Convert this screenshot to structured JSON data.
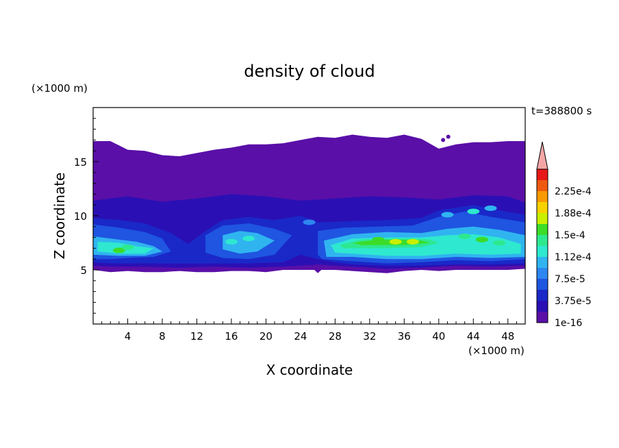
{
  "chart_data": {
    "type": "heatmap",
    "title": "density of cloud",
    "xlabel": "X coordinate",
    "ylabel": "Z coordinate",
    "x_unit": "(×1000 m)",
    "y_unit": "(×1000 m)",
    "time_label": "t=388800 s",
    "xlim": [
      0,
      50
    ],
    "ylim": [
      0,
      20
    ],
    "x_ticks": [
      4,
      8,
      12,
      16,
      20,
      24,
      28,
      32,
      36,
      40,
      44,
      48
    ],
    "x_tick_labels": [
      "4",
      "8",
      "12",
      "16",
      "20",
      "24",
      "28",
      "32",
      "36",
      "40",
      "44",
      "48"
    ],
    "y_ticks": [
      5,
      10,
      15
    ],
    "y_tick_labels": [
      "5",
      "10",
      "15"
    ],
    "colorbar": {
      "levels": [
        1e-16,
        1.875e-05,
        3.75e-05,
        5.625e-05,
        7.5e-05,
        9.375e-05,
        0.0001125,
        0.00013125,
        0.00015,
        0.00016875,
        0.0001875,
        0.00020625,
        0.000225,
        0.00024375
      ],
      "labels": [
        "1e-16",
        "3.75e-5",
        "7.5e-5",
        "1.12e-4",
        "1.5e-4",
        "1.88e-4",
        "2.25e-4"
      ],
      "label_levels": [
        0,
        2,
        4,
        6,
        8,
        10,
        12
      ],
      "colors": [
        "#5a0fa8",
        "#2a10b4",
        "#1a28c8",
        "#1f55e0",
        "#2e86f0",
        "#30b4f0",
        "#2ee8d0",
        "#2ee890",
        "#3cdc28",
        "#c8f000",
        "#f8d200",
        "#f89a00",
        "#f05a10",
        "#e81818"
      ],
      "extend_color": "#f4a6a6"
    },
    "top_boundary": [
      [
        0,
        16.9
      ],
      [
        2,
        16.9
      ],
      [
        3,
        16.5
      ],
      [
        4,
        16.1
      ],
      [
        6,
        16.0
      ],
      [
        8,
        15.6
      ],
      [
        10,
        15.5
      ],
      [
        12,
        15.8
      ],
      [
        14,
        16.1
      ],
      [
        16,
        16.3
      ],
      [
        18,
        16.6
      ],
      [
        20,
        16.6
      ],
      [
        22,
        16.7
      ],
      [
        24,
        17.0
      ],
      [
        26,
        17.3
      ],
      [
        28,
        17.2
      ],
      [
        30,
        17.5
      ],
      [
        32,
        17.3
      ],
      [
        34,
        17.2
      ],
      [
        36,
        17.5
      ],
      [
        38,
        17.1
      ],
      [
        40,
        16.2
      ],
      [
        42,
        16.6
      ],
      [
        44,
        16.8
      ],
      [
        46,
        16.8
      ],
      [
        48,
        16.9
      ],
      [
        50,
        16.9
      ]
    ],
    "bottom_boundary": [
      [
        0,
        5.0
      ],
      [
        2,
        4.8
      ],
      [
        4,
        4.9
      ],
      [
        6,
        4.8
      ],
      [
        8,
        4.8
      ],
      [
        10,
        4.9
      ],
      [
        12,
        4.8
      ],
      [
        14,
        4.8
      ],
      [
        16,
        4.9
      ],
      [
        18,
        4.9
      ],
      [
        20,
        4.8
      ],
      [
        22,
        5.0
      ],
      [
        24,
        5.0
      ],
      [
        25.6,
        5.0
      ],
      [
        26,
        4.7
      ],
      [
        26.4,
        5.0
      ],
      [
        28,
        5.0
      ],
      [
        30,
        4.9
      ],
      [
        32,
        4.8
      ],
      [
        34,
        4.7
      ],
      [
        36,
        4.9
      ],
      [
        38,
        5.0
      ],
      [
        40,
        4.9
      ],
      [
        42,
        5.0
      ],
      [
        44,
        5.0
      ],
      [
        46,
        5.0
      ],
      [
        48,
        5.0
      ],
      [
        50,
        5.1
      ]
    ],
    "regions": [
      {
        "level": 1,
        "points": [
          [
            0,
            11.4
          ],
          [
            4,
            11.8
          ],
          [
            8,
            11.3
          ],
          [
            12,
            11.6
          ],
          [
            16,
            12.0
          ],
          [
            20,
            11.8
          ],
          [
            24,
            11.4
          ],
          [
            28,
            11.6
          ],
          [
            32,
            11.8
          ],
          [
            36,
            11.7
          ],
          [
            40,
            11.5
          ],
          [
            44,
            11.9
          ],
          [
            48,
            11.8
          ],
          [
            50,
            11.2
          ],
          [
            50,
            5.4
          ],
          [
            46,
            5.3
          ],
          [
            42,
            5.4
          ],
          [
            38,
            5.2
          ],
          [
            34,
            5.1
          ],
          [
            30,
            5.3
          ],
          [
            26,
            5.5
          ],
          [
            22,
            5.3
          ],
          [
            18,
            5.2
          ],
          [
            14,
            5.3
          ],
          [
            10,
            5.2
          ],
          [
            6,
            5.3
          ],
          [
            2,
            5.3
          ],
          [
            0,
            5.4
          ]
        ]
      },
      {
        "level": 2,
        "points": [
          [
            0,
            9.8
          ],
          [
            3,
            9.6
          ],
          [
            6,
            9.3
          ],
          [
            9,
            8.4
          ],
          [
            11,
            7.4
          ],
          [
            13,
            8.6
          ],
          [
            15,
            9.6
          ],
          [
            18,
            9.9
          ],
          [
            21,
            9.6
          ],
          [
            24,
            10.0
          ],
          [
            26,
            9.4
          ],
          [
            30,
            9.5
          ],
          [
            34,
            9.6
          ],
          [
            38,
            9.8
          ],
          [
            40,
            10.5
          ],
          [
            44,
            11.0
          ],
          [
            47,
            10.5
          ],
          [
            50,
            10.1
          ],
          [
            50,
            5.6
          ],
          [
            46,
            5.5
          ],
          [
            42,
            5.5
          ],
          [
            38,
            5.4
          ],
          [
            34,
            5.4
          ],
          [
            30,
            5.5
          ],
          [
            28,
            5.7
          ],
          [
            26,
            6.0
          ],
          [
            24,
            6.4
          ],
          [
            22,
            5.7
          ],
          [
            18,
            5.6
          ],
          [
            14,
            5.6
          ],
          [
            10,
            5.6
          ],
          [
            6,
            5.6
          ],
          [
            2,
            5.6
          ],
          [
            0,
            5.7
          ]
        ]
      },
      {
        "level": 3,
        "points": [
          [
            0,
            9.2
          ],
          [
            3,
            8.9
          ],
          [
            6,
            8.5
          ],
          [
            8,
            7.9
          ],
          [
            9,
            6.7
          ],
          [
            7,
            6.2
          ],
          [
            4,
            6.1
          ],
          [
            2,
            6.0
          ],
          [
            0,
            6.0
          ]
        ]
      },
      {
        "level": 3,
        "points": [
          [
            13,
            8.2
          ],
          [
            15,
            9.1
          ],
          [
            18,
            9.3
          ],
          [
            21,
            8.8
          ],
          [
            23,
            8.2
          ],
          [
            21,
            6.4
          ],
          [
            18,
            6.0
          ],
          [
            15,
            6.1
          ],
          [
            13,
            6.6
          ]
        ]
      },
      {
        "level": 3,
        "points": [
          [
            26,
            8.6
          ],
          [
            29,
            8.9
          ],
          [
            33,
            9.0
          ],
          [
            37,
            9.1
          ],
          [
            40,
            9.9
          ],
          [
            43,
            10.4
          ],
          [
            46,
            9.9
          ],
          [
            50,
            9.4
          ],
          [
            50,
            6.0
          ],
          [
            46,
            5.8
          ],
          [
            42,
            5.9
          ],
          [
            38,
            5.7
          ],
          [
            34,
            5.6
          ],
          [
            30,
            5.8
          ],
          [
            26.5,
            6.0
          ],
          [
            26,
            6.4
          ]
        ]
      },
      {
        "level": 5,
        "points": [
          [
            0,
            8.1
          ],
          [
            2,
            7.9
          ],
          [
            5,
            7.6
          ],
          [
            7,
            7.2
          ],
          [
            8,
            6.7
          ],
          [
            6,
            6.3
          ],
          [
            3,
            6.3
          ],
          [
            0,
            6.4
          ]
        ]
      },
      {
        "level": 5,
        "points": [
          [
            15,
            8.2
          ],
          [
            17,
            8.6
          ],
          [
            19,
            8.4
          ],
          [
            21,
            7.7
          ],
          [
            19,
            6.7
          ],
          [
            17,
            6.5
          ],
          [
            15,
            6.9
          ]
        ]
      },
      {
        "level": 5,
        "points": [
          [
            26.7,
            7.7
          ],
          [
            30,
            8.3
          ],
          [
            34,
            8.5
          ],
          [
            38,
            8.4
          ],
          [
            41,
            8.8
          ],
          [
            44,
            9.0
          ],
          [
            47,
            8.7
          ],
          [
            50,
            8.2
          ],
          [
            50,
            6.2
          ],
          [
            46,
            6.1
          ],
          [
            42,
            6.2
          ],
          [
            38,
            6.0
          ],
          [
            34,
            6.0
          ],
          [
            30,
            6.2
          ],
          [
            27,
            6.2
          ]
        ]
      },
      {
        "level": 6,
        "points": [
          [
            0.5,
            7.6
          ],
          [
            3,
            7.5
          ],
          [
            5,
            7.2
          ],
          [
            7,
            7.0
          ],
          [
            6,
            6.5
          ],
          [
            3,
            6.5
          ],
          [
            0.5,
            6.7
          ]
        ]
      },
      {
        "level": 6,
        "points": [
          [
            27.5,
            7.3
          ],
          [
            30,
            7.9
          ],
          [
            34,
            8.0
          ],
          [
            38,
            8.0
          ],
          [
            41,
            8.2
          ],
          [
            44,
            8.3
          ],
          [
            47,
            8.0
          ],
          [
            49.5,
            7.4
          ],
          [
            49.5,
            6.5
          ],
          [
            46,
            6.4
          ],
          [
            42,
            6.5
          ],
          [
            38,
            6.3
          ],
          [
            34,
            6.3
          ],
          [
            30,
            6.5
          ],
          [
            28,
            6.6
          ]
        ]
      },
      {
        "level": 7,
        "points": [
          [
            28.5,
            7.3
          ],
          [
            31,
            7.8
          ],
          [
            34,
            7.9
          ],
          [
            37,
            7.9
          ],
          [
            39,
            7.8
          ],
          [
            40,
            7.5
          ],
          [
            38,
            7.1
          ],
          [
            34,
            7.0
          ],
          [
            31,
            7.0
          ],
          [
            29,
            7.0
          ]
        ]
      },
      {
        "level": 8,
        "points": [
          [
            30,
            7.5
          ],
          [
            32,
            7.7
          ],
          [
            35,
            7.8
          ],
          [
            38,
            7.7
          ],
          [
            39,
            7.5
          ],
          [
            36,
            7.3
          ],
          [
            33,
            7.3
          ],
          [
            31,
            7.3
          ]
        ]
      }
    ],
    "cells": [
      [
        [
          3,
          6.8,
          8
        ],
        [
          4,
          7.1,
          7
        ],
        [
          2,
          7.3,
          6
        ],
        [
          16,
          7.6,
          6
        ],
        [
          18,
          7.9,
          6
        ],
        [
          35,
          7.6,
          9
        ],
        [
          37,
          7.6,
          9
        ],
        [
          33,
          7.8,
          8
        ],
        [
          45,
          7.8,
          8
        ],
        [
          47,
          7.5,
          7
        ],
        [
          43,
          8.1,
          7
        ],
        [
          46,
          10.7,
          5
        ],
        [
          44,
          10.4,
          6
        ],
        [
          41,
          10.1,
          5
        ],
        [
          25,
          9.4,
          4
        ]
      ]
    ]
  }
}
